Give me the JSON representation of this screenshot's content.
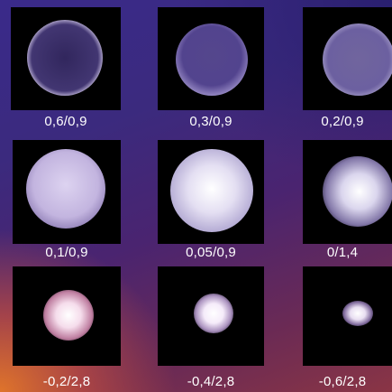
{
  "panels": [
    {
      "label": "0,6/0,9"
    },
    {
      "label": "0,3/0,9"
    },
    {
      "label": "0,2/0,9"
    },
    {
      "label": "0,1/0,9"
    },
    {
      "label": "0,05/0,9"
    },
    {
      "label": "0/1,4"
    },
    {
      "label": "-0,2/2,8"
    },
    {
      "label": "-0,4/2,8"
    },
    {
      "label": "-0,6/2,8"
    }
  ]
}
